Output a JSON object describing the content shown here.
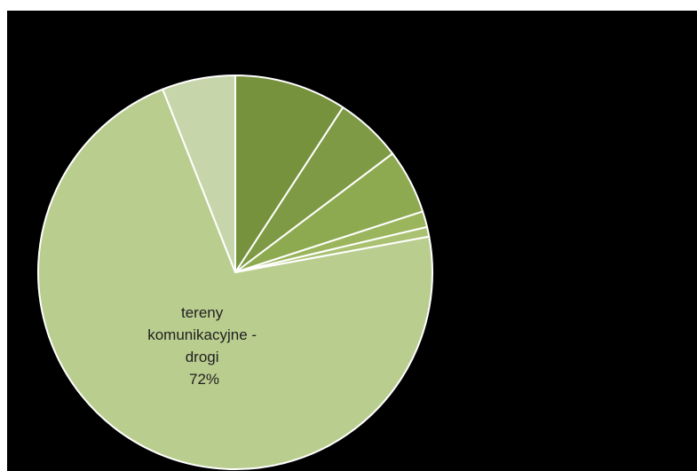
{
  "chart_data": {
    "type": "pie",
    "slices": [
      {
        "value": 9.2,
        "color": "#76923c",
        "label": "",
        "pct_label": ""
      },
      {
        "value": 5.5,
        "color": "#7e9a44",
        "label": "",
        "pct_label": ""
      },
      {
        "value": 5.3,
        "color": "#8eaa50",
        "label": "",
        "pct_label": ""
      },
      {
        "value": 1.3,
        "color": "#9bb55c",
        "label": "",
        "pct_label": ""
      },
      {
        "value": 0.8,
        "color": "#a9c170",
        "label": "",
        "pct_label": ""
      },
      {
        "value": 71.9,
        "color": "#b9cd8f",
        "label": "tereny komunikacyjne - drogi",
        "pct_label": "72%"
      },
      {
        "value": 6.0,
        "color": "#c7d6aa",
        "label": "",
        "pct_label": ""
      }
    ],
    "start_angle_deg": 0,
    "direction": "clockwise",
    "separator_color": "#ffffff",
    "background": "#000000"
  },
  "labels": {
    "main": {
      "lines": [
        "tereny",
        "komunikacyjne -",
        "drogi",
        "72%"
      ]
    }
  }
}
